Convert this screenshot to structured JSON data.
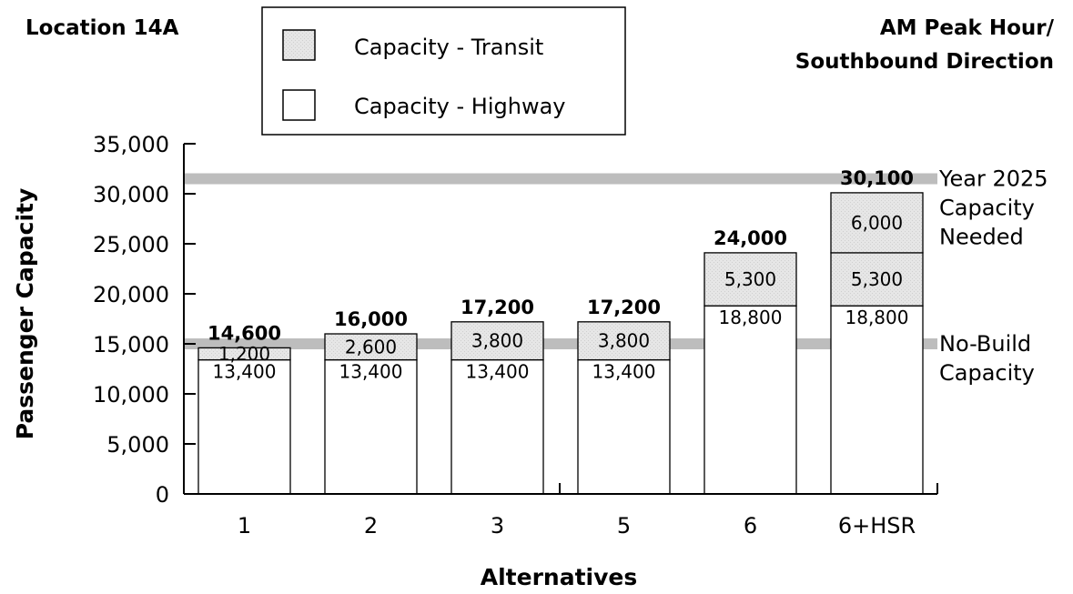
{
  "chart_data": {
    "type": "bar",
    "stacked": true,
    "title_left": "Location 14A",
    "title_right": [
      "AM Peak Hour/",
      "Southbound Direction"
    ],
    "xlabel": "Alternatives",
    "ylabel": "Passenger Capacity",
    "ylim": [
      0,
      35000
    ],
    "yticks": [
      0,
      5000,
      10000,
      15000,
      20000,
      25000,
      30000,
      35000
    ],
    "ytick_labels": [
      "0",
      "5,000",
      "10,000",
      "15,000",
      "20,000",
      "25,000",
      "30,000",
      "35,000"
    ],
    "categories": [
      "1",
      "2",
      "3",
      "5",
      "6",
      "6+HSR"
    ],
    "legend": [
      {
        "label": "Capacity - Transit",
        "color": "#e3e3e3"
      },
      {
        "label": "Capacity - Highway",
        "color": "#ffffff"
      }
    ],
    "stacks": [
      {
        "segments": [
          {
            "value": 13400,
            "label": "13,400",
            "color": "#ffffff"
          },
          {
            "value": 1200,
            "label": "1,200",
            "color": "#e3e3e3"
          }
        ],
        "total": 14600,
        "total_label": "14,600"
      },
      {
        "segments": [
          {
            "value": 13400,
            "label": "13,400",
            "color": "#ffffff"
          },
          {
            "value": 2600,
            "label": "2,600",
            "color": "#e3e3e3"
          }
        ],
        "total": 16000,
        "total_label": "16,000"
      },
      {
        "segments": [
          {
            "value": 13400,
            "label": "13,400",
            "color": "#ffffff"
          },
          {
            "value": 3800,
            "label": "3,800",
            "color": "#e3e3e3"
          }
        ],
        "total": 17200,
        "total_label": "17,200"
      },
      {
        "segments": [
          {
            "value": 13400,
            "label": "13,400",
            "color": "#ffffff"
          },
          {
            "value": 3800,
            "label": "3,800",
            "color": "#e3e3e3"
          }
        ],
        "total": 17200,
        "total_label": "17,200"
      },
      {
        "segments": [
          {
            "value": 18800,
            "label": "18,800",
            "color": "#ffffff"
          },
          {
            "value": 5300,
            "label": "5,300",
            "color": "#e3e3e3"
          }
        ],
        "total": 24000,
        "total_label": "24,000"
      },
      {
        "segments": [
          {
            "value": 18800,
            "label": "18,800",
            "color": "#ffffff"
          },
          {
            "value": 5300,
            "label": "5,300",
            "color": "#e3e3e3"
          },
          {
            "value": 6000,
            "label": "6,000",
            "color": "#e3e3e3"
          }
        ],
        "total": 30100,
        "total_label": "30,100"
      }
    ],
    "reference_lines": [
      {
        "value": 31500,
        "label": [
          "Year 2025",
          "Capacity",
          "Needed"
        ],
        "color": "#bdbdbd"
      },
      {
        "value": 15000,
        "label": [
          "No-Build",
          "Capacity"
        ],
        "color": "#bdbdbd"
      }
    ],
    "grid": false
  }
}
